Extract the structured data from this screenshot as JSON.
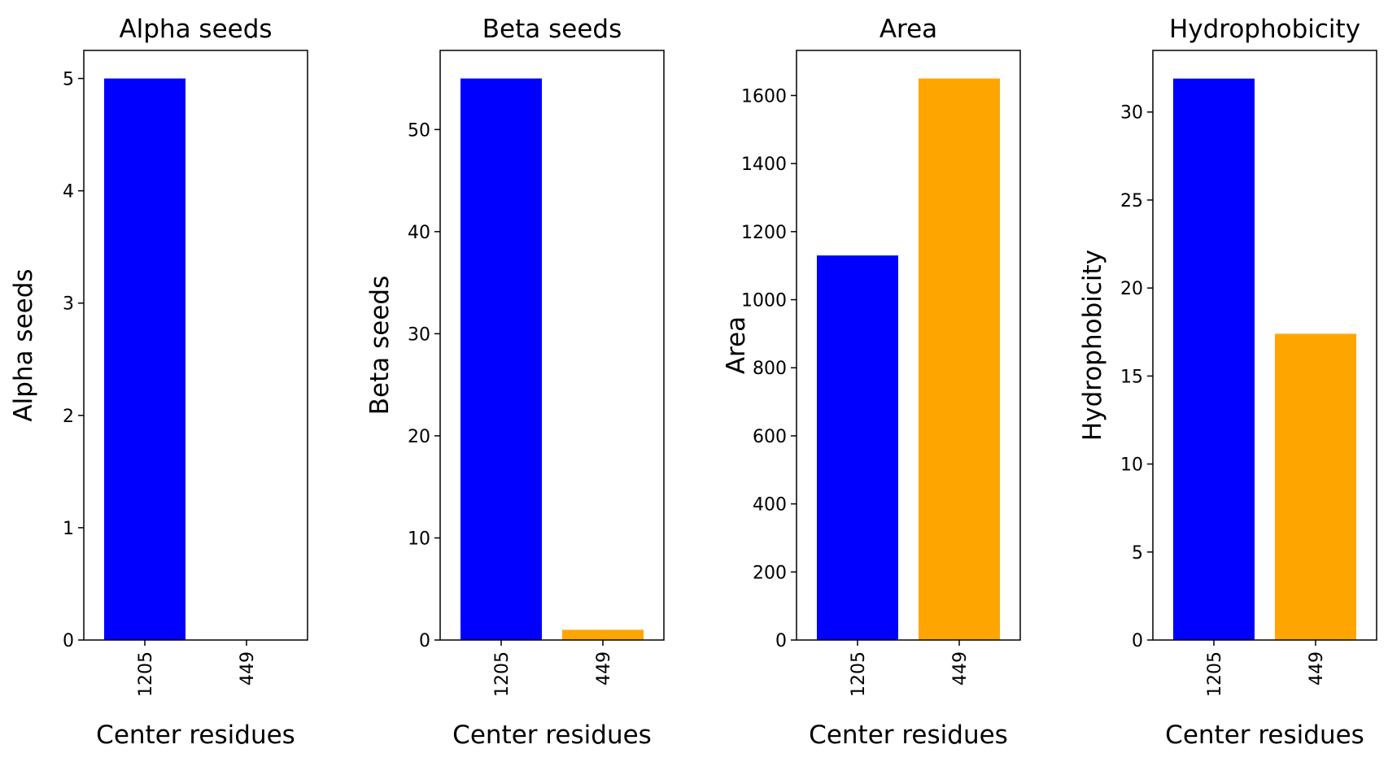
{
  "chart_data": [
    {
      "type": "bar",
      "title": "Alpha seeds",
      "xlabel": "Center residues",
      "ylabel": "Alpha seeds",
      "categories": [
        "1205",
        "449"
      ],
      "values": [
        5,
        0
      ],
      "colors": [
        "#0000ff",
        "#ffa500"
      ],
      "ylim": [
        0,
        5.25
      ],
      "yticks": [
        0,
        1,
        2,
        3,
        4,
        5
      ],
      "grid": false
    },
    {
      "type": "bar",
      "title": "Beta seeds",
      "xlabel": "Center residues",
      "ylabel": "Beta seeds",
      "categories": [
        "1205",
        "449"
      ],
      "values": [
        55,
        1
      ],
      "colors": [
        "#0000ff",
        "#ffa500"
      ],
      "ylim": [
        0,
        57.75
      ],
      "yticks": [
        0,
        10,
        20,
        30,
        40,
        50
      ],
      "grid": false
    },
    {
      "type": "bar",
      "title": "Area",
      "xlabel": "Center residues",
      "ylabel": "Area",
      "categories": [
        "1205",
        "449"
      ],
      "values": [
        1130,
        1650
      ],
      "colors": [
        "#0000ff",
        "#ffa500"
      ],
      "ylim": [
        0,
        1732.5
      ],
      "yticks": [
        0,
        200,
        400,
        600,
        800,
        1000,
        1200,
        1400,
        1600
      ],
      "grid": false
    },
    {
      "type": "bar",
      "title": "Hydrophobicity",
      "xlabel": "Center residues",
      "ylabel": "Hydrophobicity",
      "categories": [
        "1205",
        "449"
      ],
      "values": [
        31.9,
        17.4
      ],
      "colors": [
        "#0000ff",
        "#ffa500"
      ],
      "ylim": [
        0,
        33.5
      ],
      "yticks": [
        0,
        5,
        10,
        15,
        20,
        25,
        30
      ],
      "grid": false
    }
  ]
}
